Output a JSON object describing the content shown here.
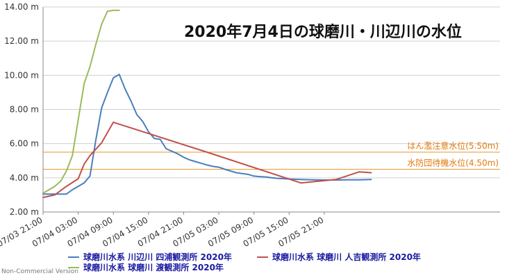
{
  "footer": "Non-Commercial Version",
  "chart_data": {
    "type": "line",
    "title": "2020年7月4日の球磨川・川辺川の水位",
    "ylim": [
      2.0,
      14.0
    ],
    "y_ticks": [
      "2.00 m",
      "4.00 m",
      "6.00 m",
      "8.00 m",
      "10.00 m",
      "12.00 m",
      "14.00 m"
    ],
    "y_tick_values": [
      2,
      4,
      6,
      8,
      10,
      12,
      14
    ],
    "x_range": [
      0,
      78
    ],
    "x_ticks": [
      "07/03 21:00",
      "07/04 03:00",
      "07/04 09:00",
      "07/04 15:00",
      "07/04 21:00",
      "07/05 03:00",
      "07/05 09:00",
      "07/05 15:00",
      "07/05 21:00"
    ],
    "x_tick_hours": [
      0,
      6,
      12,
      18,
      24,
      30,
      36,
      42,
      48
    ],
    "grid": true,
    "legend_position": "bottom",
    "reference_lines": [
      {
        "label": "はん濫注意水位(5.50m)",
        "value": 5.5,
        "color": "#e8a040"
      },
      {
        "label": "水防団待機水位(4.50m)",
        "value": 4.5,
        "color": "#e8a040"
      }
    ],
    "series": [
      {
        "name": "球磨川水系 川辺川 四浦観測所 2020年",
        "color": "#4a7ebb",
        "x": [
          0,
          4,
          5,
          7,
          8,
          9,
          10,
          11,
          12,
          13,
          14,
          15,
          16,
          17,
          18,
          19,
          20,
          21,
          22,
          23,
          24,
          25,
          26,
          27,
          28,
          29,
          30,
          31,
          32,
          33,
          34,
          35,
          36,
          37,
          38,
          39,
          40,
          42,
          44,
          46,
          48,
          50,
          52,
          54,
          56
        ],
        "values": [
          3.05,
          3.05,
          3.3,
          3.7,
          4.1,
          6.2,
          8.1,
          9.0,
          9.85,
          10.05,
          9.2,
          8.5,
          7.7,
          7.3,
          6.7,
          6.3,
          6.25,
          5.7,
          5.55,
          5.4,
          5.2,
          5.05,
          4.95,
          4.85,
          4.75,
          4.67,
          4.62,
          4.5,
          4.4,
          4.3,
          4.25,
          4.2,
          4.1,
          4.07,
          4.05,
          4.0,
          3.97,
          3.93,
          3.9,
          3.88,
          3.87,
          3.87,
          3.88,
          3.88,
          3.9
        ]
      },
      {
        "name": "球磨川水系 球磨川 人吉観測所 2020年",
        "color": "#c0504d",
        "x": [
          0,
          2,
          4,
          6,
          7,
          8,
          10,
          12,
          28,
          44,
          50,
          54,
          56
        ],
        "values": [
          2.85,
          3.0,
          3.5,
          3.95,
          4.8,
          5.3,
          6.05,
          7.25,
          5.5,
          3.7,
          3.9,
          4.35,
          4.3
        ]
      },
      {
        "name": "球磨川水系 球磨川 渡観測所 2020年",
        "color": "#9bbb59",
        "x": [
          0,
          2,
          3,
          4,
          5,
          6,
          7,
          8,
          9,
          10,
          11,
          12,
          13
        ],
        "values": [
          3.1,
          3.5,
          3.8,
          4.4,
          5.3,
          7.4,
          9.5,
          10.5,
          11.8,
          13.0,
          13.75,
          14.1,
          14.4
        ]
      }
    ]
  }
}
